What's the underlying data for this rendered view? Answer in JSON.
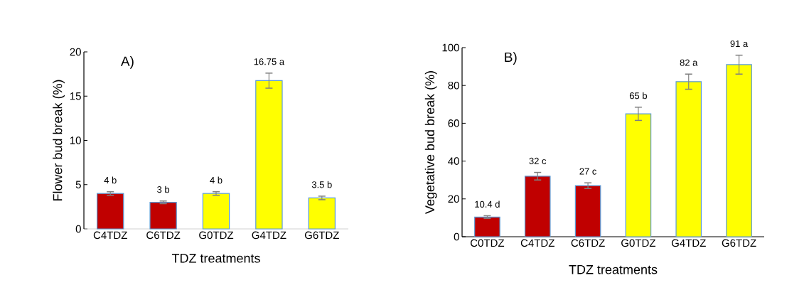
{
  "chart_data": [
    {
      "type": "bar",
      "title": "A)",
      "xlabel": "TDZ treatments",
      "ylabel": "Flower bud break (%)",
      "categories": [
        "C4TDZ",
        "C6TDZ",
        "G0TDZ",
        "G4TDZ",
        "G6TDZ"
      ],
      "values": [
        4,
        3,
        4,
        16.75,
        3.5
      ],
      "colors": [
        "#c00000",
        "#c00000",
        "#ffff00",
        "#ffff00",
        "#ffff00"
      ],
      "errors": [
        0.2,
        0.15,
        0.2,
        0.85,
        0.2
      ],
      "value_labels": [
        "4 b",
        "3 b",
        "4 b",
        "16.75 a",
        "3.5 b"
      ],
      "ylim": [
        0,
        20
      ],
      "yticks": [
        0,
        5,
        10,
        15,
        20
      ]
    },
    {
      "type": "bar",
      "title": "B)",
      "xlabel": "TDZ treatments",
      "ylabel": "Vegetative bud break (%)",
      "categories": [
        "C0TDZ",
        "C4TDZ",
        "C6TDZ",
        "G0TDZ",
        "G4TDZ",
        "G6TDZ"
      ],
      "values": [
        10.4,
        32,
        27,
        65,
        82,
        91
      ],
      "colors": [
        "#c00000",
        "#c00000",
        "#c00000",
        "#ffff00",
        "#ffff00",
        "#ffff00"
      ],
      "errors": [
        0.7,
        2,
        1.5,
        3.5,
        4,
        5
      ],
      "value_labels": [
        "10.4 d",
        "32 c",
        "27 c",
        "65 b",
        "82 a",
        "91 a"
      ],
      "ylim": [
        0,
        100
      ],
      "yticks": [
        0,
        20,
        40,
        60,
        80,
        100
      ]
    }
  ]
}
